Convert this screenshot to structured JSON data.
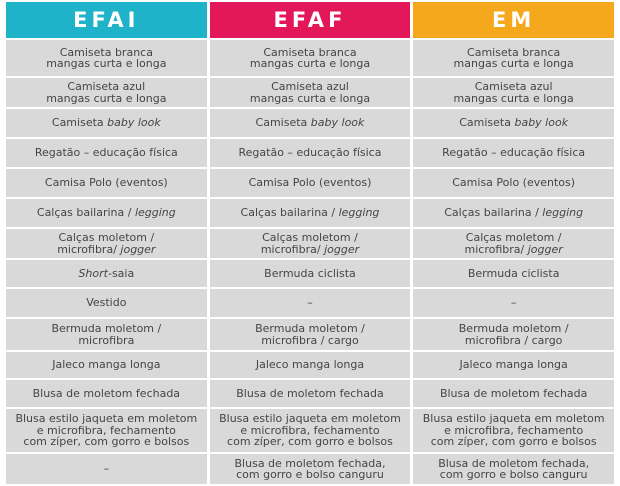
{
  "table": {
    "header": [
      "EFAI",
      "EFAF",
      "EM"
    ],
    "rows": [
      [
        "Camiseta branca\nmangas curta e longa",
        "Camiseta branca\nmangas curta e longa",
        "Camiseta branca\nmangas curta e longa"
      ],
      [
        "Camiseta azul\nmangas curta e longa",
        "Camiseta azul\nmangas curta e longa",
        "Camiseta azul\nmangas curta e longa"
      ],
      [
        [
          "Camiseta ",
          {
            "em": "baby look"
          }
        ],
        [
          "Camiseta ",
          {
            "em": "baby look"
          }
        ],
        [
          "Camiseta ",
          {
            "em": "baby look"
          }
        ]
      ],
      [
        "Regatão – educação física",
        "Regatão – educação física",
        "Regatão – educação física"
      ],
      [
        "Camisa Polo (eventos)",
        "Camisa Polo (eventos)",
        "Camisa Polo (eventos)"
      ],
      [
        [
          "Calças bailarina / ",
          {
            "em": "legging"
          }
        ],
        [
          "Calças bailarina / ",
          {
            "em": "legging"
          }
        ],
        [
          "Calças bailarina / ",
          {
            "em": "legging"
          }
        ]
      ],
      [
        [
          "Calças moletom /\nmicrofibra/ ",
          {
            "em": "jogger"
          }
        ],
        [
          "Calças moletom /\nmicrofibra/ ",
          {
            "em": "jogger"
          }
        ],
        [
          "Calças moletom /\nmicrofibra/ ",
          {
            "em": "jogger"
          }
        ]
      ],
      [
        [
          {
            "em": "Short"
          },
          "-saia"
        ],
        "Bermuda ciclista",
        "Bermuda ciclista"
      ],
      [
        "Vestido",
        "–",
        "–"
      ],
      [
        "Bermuda moletom /\nmicrofibra",
        "Bermuda moletom /\nmicrofibra / cargo",
        "Bermuda moletom /\nmicrofibra / cargo"
      ],
      [
        "Jaleco manga longa",
        "Jaleco manga longa",
        "Jaleco manga longa"
      ],
      [
        "Blusa de moletom fechada",
        "Blusa de moletom fechada",
        "Blusa de moletom fechada"
      ],
      [
        "Blusa estilo jaqueta em moletom\ne microfibra, fechamento\ncom zíper, com gorro e bolsos",
        "Blusa estilo jaqueta em moletom\ne microfibra, fechamento\ncom zíper, com gorro e bolsos",
        "Blusa estilo jaqueta em moletom\ne microfibra, fechamento\ncom zíper, com gorro e bolsos"
      ],
      [
        "–",
        "Blusa de moletom fechada,\ncom gorro e bolso canguru",
        "Blusa de moletom fechada,\ncom gorro e bolso canguru"
      ]
    ]
  }
}
